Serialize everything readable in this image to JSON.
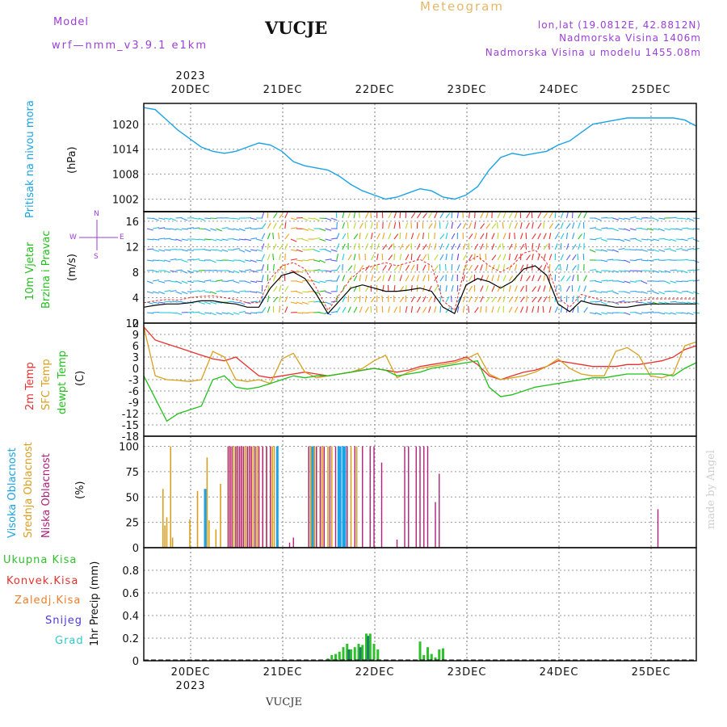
{
  "header": {
    "model_label": "Model",
    "model_name": "wrf—nmm_v3.9.1  e1km",
    "station": "VUCJE",
    "product": "Meteogram",
    "coords": "lon,lat (19.0812E, 42.8812N)",
    "elevation": "Nadmorska Visina 1406m",
    "model_elevation": "Nadmorska Visina u modelu 1455.08m",
    "footer_station": "VUCJE",
    "credit": "made by Angel"
  },
  "colors": {
    "pressure": "#1ba3e6",
    "temp2m": "#e8302e",
    "sfc_temp": "#d9a020",
    "dewpoint": "#22c01c",
    "high_cloud": "#1ba3e6",
    "mid_cloud": "#d9a020",
    "low_cloud": "#b0207a",
    "total_precip": "#2fc12a",
    "conv_precip": "#e8302e",
    "frz_precip": "#f07d2a",
    "snow": "#4a3ae0",
    "grad": "#2ec9c9",
    "wind_speed": "#000000",
    "gust": "#e8302e"
  },
  "chart_data": [
    {
      "type": "line",
      "panel": "pressure",
      "ylabel_main": "Pritisak na nivou mora",
      "ylabel_unit": "(hPa)",
      "ylim": [
        999,
        1025
      ],
      "yticks": [
        "1002",
        "1008",
        "1014",
        "1020"
      ],
      "xticks_top": [
        "20DEC",
        "21DEC",
        "22DEC",
        "23DEC",
        "24DEC",
        "25DEC"
      ],
      "year_top": "2023",
      "x_hours": [
        0,
        3,
        6,
        9,
        12,
        15,
        18,
        21,
        24,
        27,
        30,
        33,
        36,
        39,
        42,
        45,
        48,
        51,
        54,
        57,
        60,
        63,
        66,
        69,
        72,
        75,
        78,
        81,
        84,
        87,
        90,
        93,
        96,
        99,
        102,
        105,
        108,
        111,
        114,
        117,
        120,
        123,
        126,
        129,
        132,
        135,
        138,
        141,
        144
      ],
      "series": [
        {
          "values": [
            1024,
            1023.5,
            1021,
            1018.5,
            1016.5,
            1014.5,
            1013.5,
            1013,
            1013.5,
            1014.5,
            1015.5,
            1015,
            1013.5,
            1011,
            1010,
            1009.5,
            1009,
            1007.5,
            1005.5,
            1004,
            1003,
            1002,
            1002.5,
            1003.5,
            1004.5,
            1004,
            1002.5,
            1002,
            1003,
            1005,
            1009,
            1012,
            1013,
            1012.5,
            1013,
            1013.5,
            1015,
            1016,
            1018,
            1020,
            1020.5,
            1021,
            1021.5,
            1021.5,
            1021.5,
            1021.5,
            1021.5,
            1021,
            1019.5
          ]
        }
      ],
      "grid": true
    },
    {
      "type": "line",
      "panel": "wind",
      "ylabel_main": "10m Vjetar",
      "ylabel_sub": "Brzina i Pravac",
      "ylabel_unit": "(m/s)",
      "compass": [
        "N",
        "W",
        "E",
        "S"
      ],
      "ylim": [
        0,
        17.5
      ],
      "yticks": [
        "0",
        "4",
        "8",
        "12",
        "16"
      ],
      "x_hours": [
        0,
        3,
        6,
        9,
        12,
        15,
        18,
        21,
        24,
        27,
        30,
        33,
        36,
        39,
        42,
        45,
        48,
        51,
        54,
        57,
        60,
        63,
        66,
        69,
        72,
        75,
        78,
        81,
        84,
        87,
        90,
        93,
        96,
        99,
        102,
        105,
        108,
        111,
        114,
        117,
        120,
        123,
        126,
        129,
        132,
        135,
        138,
        141,
        144
      ],
      "series": [
        {
          "values": [
            2.5,
            2.8,
            3,
            3,
            3.2,
            3.5,
            3.5,
            3.2,
            3,
            2.5,
            2.5,
            5.5,
            7.5,
            8,
            7,
            4.5,
            1.5,
            3.5,
            5.5,
            6,
            5.5,
            5,
            5,
            5.2,
            5.5,
            5,
            2.5,
            1.5,
            6,
            7,
            6.5,
            5.5,
            6.5,
            8.5,
            9,
            7.5,
            3,
            1.8,
            3.5,
            3,
            2.8,
            2.5,
            2.5,
            2.8,
            3,
            3,
            3,
            3,
            3
          ]
        },
        {
          "values": [
            3.2,
            3.5,
            3.7,
            3.6,
            4,
            4.2,
            4.3,
            4,
            3.7,
            3.2,
            3.2,
            7,
            9,
            9.5,
            8.5,
            5.5,
            2,
            4.5,
            7,
            8.5,
            9,
            9.5,
            9,
            9.5,
            10,
            9,
            3.5,
            2,
            9.5,
            10.5,
            9,
            8,
            9,
            11,
            11.5,
            9.5,
            4,
            2.5,
            4.5,
            4,
            3.5,
            3.2,
            3.2,
            3.5,
            3.8,
            3.8,
            3.8,
            3.8,
            3.8
          ]
        }
      ],
      "grid": true
    },
    {
      "type": "line",
      "panel": "temperature",
      "ylabel_parts": [
        "2m Temp",
        "SFC Temp",
        "dewpt Temp"
      ],
      "ylabel_unit": "(C)",
      "ylim": [
        -18,
        12
      ],
      "yticks": [
        "-18",
        "-15",
        "-12",
        "-9",
        "-6",
        "-3",
        "0",
        "3",
        "6",
        "9",
        "12"
      ],
      "x_hours": [
        0,
        3,
        6,
        9,
        12,
        15,
        18,
        21,
        24,
        27,
        30,
        33,
        36,
        39,
        42,
        45,
        48,
        51,
        54,
        57,
        60,
        63,
        66,
        69,
        72,
        75,
        78,
        81,
        84,
        87,
        90,
        93,
        96,
        99,
        102,
        105,
        108,
        111,
        114,
        117,
        120,
        123,
        126,
        129,
        132,
        135,
        138,
        141,
        144
      ],
      "series": [
        {
          "name": "2m Temp",
          "values": [
            11,
            7.5,
            6.5,
            5.5,
            4.5,
            3.5,
            2.5,
            2,
            3,
            0.5,
            -2,
            -2.5,
            -2,
            -1.5,
            -1,
            -1.5,
            -2,
            -1.5,
            -1,
            -0.5,
            0,
            -0.5,
            -1,
            -0.5,
            0.5,
            1,
            1.5,
            2,
            3,
            1,
            -2,
            -3,
            -2,
            -1,
            -0.5,
            0.5,
            2,
            1.5,
            1,
            0.5,
            0.5,
            0.5,
            1,
            1,
            1.5,
            2,
            3,
            5,
            6
          ]
        },
        {
          "name": "SFC Temp",
          "values": [
            11,
            -2,
            -3,
            -3.2,
            -3.5,
            -3,
            4.5,
            3,
            -3,
            -3.5,
            -3,
            -4,
            2.5,
            4,
            -1,
            -2.5,
            -2,
            -1.5,
            -1,
            0,
            2,
            3.5,
            -2.5,
            -1,
            0,
            0.5,
            1,
            1.5,
            2.5,
            4,
            -1.5,
            -3,
            -2.5,
            -2,
            -1,
            0.5,
            2.5,
            0,
            -1.5,
            -2,
            -2,
            4.5,
            5.5,
            3.5,
            -2,
            -2.5,
            -1.5,
            6,
            7
          ]
        },
        {
          "name": "dewpt Temp",
          "values": [
            -2,
            -8,
            -14,
            -12,
            -11,
            -10,
            -3,
            -2,
            -5,
            -5.5,
            -5,
            -4,
            -3,
            -2,
            -2.5,
            -2,
            -2,
            -1.5,
            -1,
            -0.5,
            0,
            -0.5,
            -2,
            -1.5,
            -1,
            0,
            0.5,
            1,
            1.5,
            2,
            -5,
            -7.5,
            -7,
            -6,
            -5,
            -4.5,
            -4,
            -3.5,
            -3,
            -2.5,
            -2.5,
            -2,
            -1.5,
            -1.5,
            -1.5,
            -1.5,
            -2,
            0,
            1.5
          ]
        }
      ],
      "grid": true
    },
    {
      "type": "bar",
      "panel": "clouds",
      "ylabel_parts": [
        "Visoka Oblacnost",
        "Srednja Oblacnost",
        "Niska Oblacnost"
      ],
      "ylabel_unit": "(%)",
      "ylim": [
        0,
        100
      ],
      "yticks": [
        "0",
        "25",
        "50",
        "75",
        "100"
      ],
      "series": [
        {
          "name": "Visoka Oblacnost",
          "points": [
            [
              16,
              58
            ],
            [
              34.8,
              100
            ],
            [
              44,
              100
            ],
            [
              50.8,
              100
            ],
            [
              51.2,
              100
            ],
            [
              52,
              100
            ],
            [
              52.4,
              100
            ]
          ]
        },
        {
          "name": "Srednja Oblacnost",
          "points": [
            [
              5,
              58
            ],
            [
              5.5,
              22
            ],
            [
              6,
              30
            ],
            [
              7,
              100
            ],
            [
              7.5,
              10
            ],
            [
              12,
              28
            ],
            [
              14,
              56
            ],
            [
              16.5,
              89
            ],
            [
              17,
              27
            ],
            [
              18.8,
              18
            ],
            [
              20,
              63
            ],
            [
              22,
              100
            ],
            [
              22.5,
              100
            ],
            [
              23,
              100
            ],
            [
              23.5,
              100
            ],
            [
              24,
              100
            ],
            [
              24.5,
              100
            ],
            [
              25,
              100
            ],
            [
              25.5,
              100
            ],
            [
              26,
              100
            ],
            [
              26.5,
              100
            ],
            [
              27,
              100
            ],
            [
              27.5,
              100
            ],
            [
              28,
              100
            ],
            [
              28.5,
              100
            ],
            [
              29,
              100
            ],
            [
              29.5,
              100
            ],
            [
              30,
              100
            ],
            [
              31,
              100
            ],
            [
              32,
              100
            ],
            [
              33,
              100
            ],
            [
              33.5,
              100
            ],
            [
              34,
              100
            ],
            [
              35,
              8
            ],
            [
              43,
              100
            ],
            [
              43.5,
              100
            ],
            [
              44.5,
              100
            ],
            [
              45,
              100
            ],
            [
              46,
              100
            ],
            [
              46.5,
              100
            ],
            [
              47,
              100
            ],
            [
              48,
              100
            ],
            [
              49,
              100
            ],
            [
              51,
              100
            ],
            [
              53,
              100
            ],
            [
              54,
              100
            ],
            [
              55.5,
              100
            ]
          ]
        },
        {
          "name": "Niska Oblacnost",
          "points": [
            [
              22,
              100
            ],
            [
              22.5,
              100
            ],
            [
              23,
              100
            ],
            [
              24,
              100
            ],
            [
              24.5,
              100
            ],
            [
              25,
              100
            ],
            [
              25.5,
              100
            ],
            [
              26,
              100
            ],
            [
              27,
              100
            ],
            [
              27.5,
              100
            ],
            [
              28,
              100
            ],
            [
              29,
              100
            ],
            [
              30,
              100
            ],
            [
              31,
              100
            ],
            [
              32,
              100
            ],
            [
              33,
              100
            ],
            [
              38,
              5
            ],
            [
              39,
              10
            ],
            [
              43,
              100
            ],
            [
              44,
              100
            ],
            [
              45,
              100
            ],
            [
              46,
              100
            ],
            [
              47,
              100
            ],
            [
              48.5,
              100
            ],
            [
              50,
              100
            ],
            [
              52,
              100
            ],
            [
              53,
              100
            ],
            [
              55,
              100
            ],
            [
              57,
              100
            ],
            [
              59,
              100
            ],
            [
              60,
              100
            ],
            [
              62,
              84
            ],
            [
              66,
              8
            ],
            [
              68,
              100
            ],
            [
              69,
              100
            ],
            [
              71,
              100
            ],
            [
              72,
              100
            ],
            [
              73,
              100
            ],
            [
              74,
              100
            ],
            [
              76,
              45
            ],
            [
              77,
              73
            ],
            [
              134,
              38
            ]
          ]
        }
      ],
      "grid": true
    },
    {
      "type": "bar",
      "panel": "precip",
      "legend": [
        "Ukupna Kisa",
        "Konvek.Kisa",
        "Zaledj.Kisa",
        "Snijeg",
        "Grad"
      ],
      "ylabel_unit": "1hr Precip (mm)",
      "ylim": [
        0,
        1.0
      ],
      "yticks": [
        "0",
        "0.2",
        "0.4",
        "0.6",
        "0.8"
      ],
      "xticks_bottom": [
        "20DEC",
        "21DEC",
        "22DEC",
        "23DEC",
        "24DEC",
        "25DEC"
      ],
      "year_bottom": "2023",
      "series": [
        {
          "name": "Ukupna Kisa",
          "points": [
            [
              48,
              0.02
            ],
            [
              49,
              0.05
            ],
            [
              50,
              0.06
            ],
            [
              51,
              0.08
            ],
            [
              52,
              0.12
            ],
            [
              53,
              0.15
            ],
            [
              54,
              0.1
            ],
            [
              55,
              0.12
            ],
            [
              56,
              0.15
            ],
            [
              57,
              0.14
            ],
            [
              58,
              0.24
            ],
            [
              59,
              0.24
            ],
            [
              60,
              0.15
            ],
            [
              61,
              0.1
            ],
            [
              72,
              0.17
            ],
            [
              73,
              0.05
            ],
            [
              74,
              0.12
            ],
            [
              75,
              0.06
            ],
            [
              76,
              0.03
            ],
            [
              77,
              0.1
            ],
            [
              78,
              0.11
            ]
          ]
        },
        {
          "name": "Grad",
          "points": [
            [
              53,
              0.1
            ],
            [
              56,
              0.12
            ],
            [
              58,
              0.22
            ]
          ]
        }
      ],
      "grid": true
    }
  ]
}
